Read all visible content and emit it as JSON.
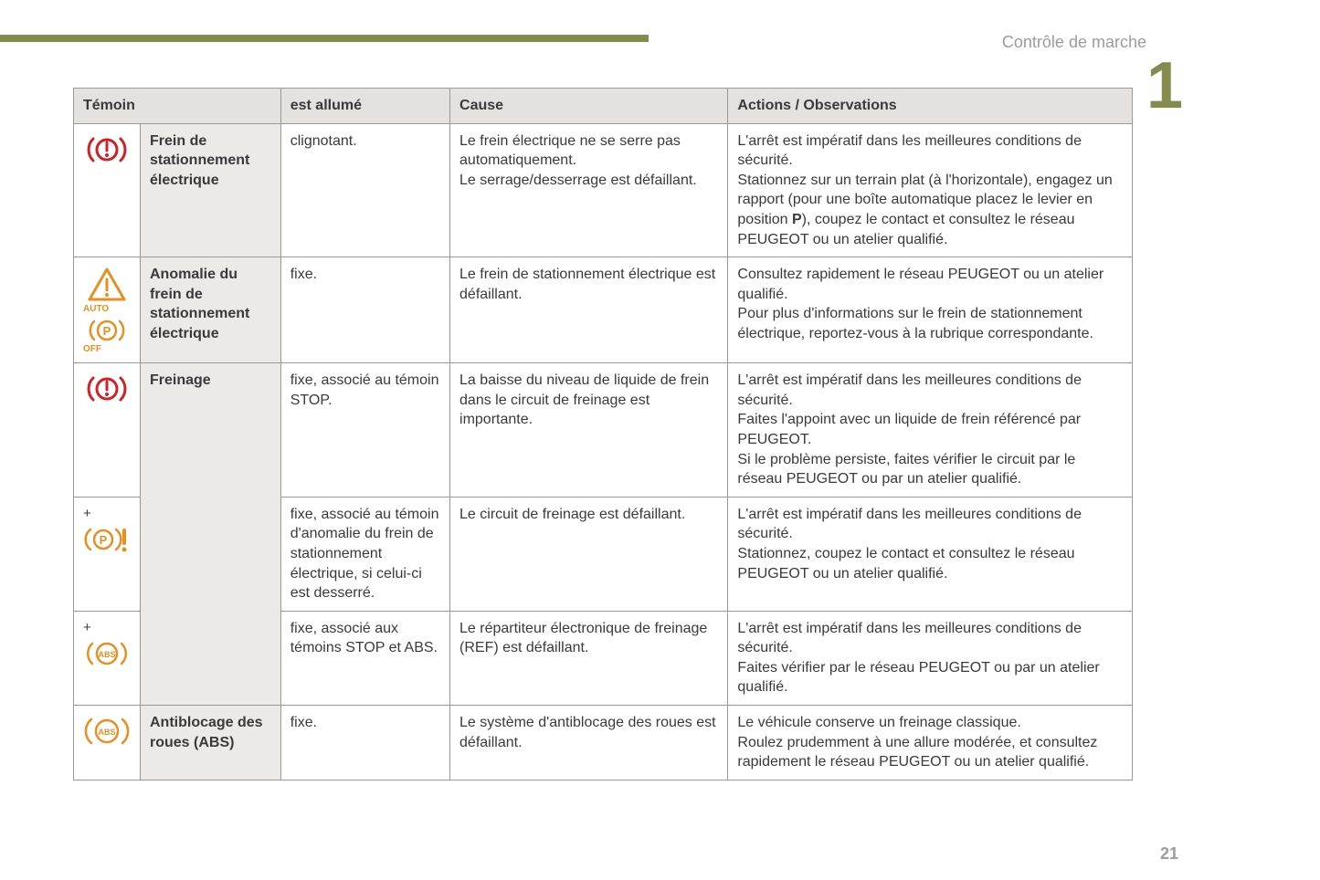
{
  "section_title": "Contrôle de marche",
  "chapter_number": "1",
  "page_number": "21",
  "colors": {
    "accent": "#838b4d",
    "header_bg": "#e4e2df",
    "temoin_bg": "#ebeae7",
    "border": "#999999",
    "text": "#3a3a3a",
    "muted": "#9c9c9c",
    "red": "#d32025",
    "orange": "#e79021"
  },
  "headers": {
    "temoin": "Témoin",
    "allume": "est allumé",
    "cause": "Cause",
    "actions": "Actions / Observations"
  },
  "rows": [
    {
      "icon": "brake-red",
      "temoin": "Frein de stationnement électrique",
      "allume": "clignotant.",
      "cause": "Le frein électrique ne se serre pas automatiquement.\nLe serrage/desserrage est défaillant.",
      "actions": "L'arrêt est impératif dans les meilleures conditions de sécurité.\nStationnez sur un terrain plat (à l'horizontale), engagez un rapport (pour une boîte automatique placez le levier en position P), coupez le contact et consultez le réseau PEUGEOT ou un atelier qualifié."
    },
    {
      "icon": "warning-auto-p-off",
      "temoin": "Anomalie du frein de stationnement électrique",
      "allume": "fixe.",
      "cause": "Le frein de stationnement électrique est défaillant.",
      "actions": "Consultez rapidement le réseau PEUGEOT ou un atelier qualifié.\nPour plus d'informations sur le frein de stationnement électrique, reportez-vous à la rubrique correspondante."
    },
    {
      "icon": "brake-red",
      "temoin": "Freinage",
      "allume": "fixe, associé au témoin STOP.",
      "cause": "La baisse du niveau de liquide de frein dans le circuit de freinage est importante.",
      "actions": "L'arrêt est impératif dans les meilleures conditions de sécurité.\nFaites l'appoint avec un liquide de frein référencé par PEUGEOT.\nSi le problème persiste, faites vérifier le circuit par le réseau PEUGEOT ou par un atelier qualifié."
    },
    {
      "icon": "plus-p-orange",
      "allume": "fixe, associé au témoin d'anomalie du frein de stationnement électrique, si celui-ci est desserré.",
      "cause": "Le circuit de freinage est défaillant.",
      "actions": "L'arrêt est impératif dans les meilleures conditions de sécurité.\nStationnez, coupez le contact et consultez le réseau PEUGEOT ou un atelier qualifié."
    },
    {
      "icon": "plus-abs-orange",
      "allume": "fixe, associé aux témoins STOP et ABS.",
      "cause": "Le répartiteur électronique de freinage (REF) est défaillant.",
      "actions": "L'arrêt est impératif dans les meilleures conditions de sécurité.\nFaites vérifier par le réseau PEUGEOT ou par un atelier qualifié."
    },
    {
      "icon": "abs-orange",
      "temoin": "Antiblocage des roues (ABS)",
      "allume": "fixe.",
      "cause": "Le système d'antiblocage des roues est défaillant.",
      "actions": "Le véhicule conserve un freinage classique.\nRoulez prudemment à une allure modérée, et consultez rapidement le réseau PEUGEOT ou un atelier qualifié."
    }
  ]
}
